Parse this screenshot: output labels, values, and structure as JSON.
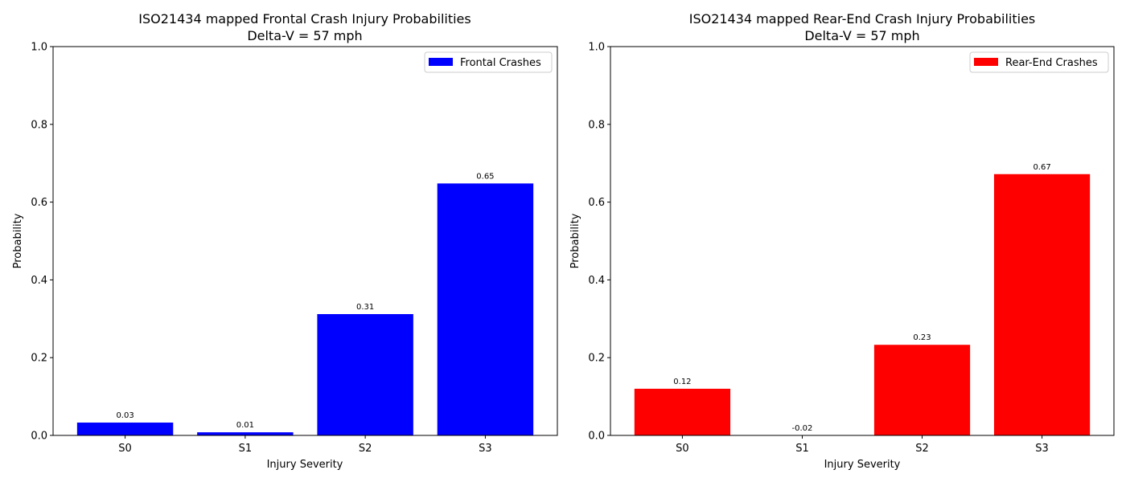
{
  "chart_data": [
    {
      "type": "bar",
      "title": "ISO21434 mapped Frontal Crash Injury Probabilities",
      "subtitle": "Delta-V = 57 mph",
      "xlabel": "Injury Severity",
      "ylabel": "Probability",
      "categories": [
        "S0",
        "S1",
        "S2",
        "S3"
      ],
      "series": [
        {
          "name": "Frontal Crashes",
          "color": "#0000ff",
          "values": [
            0.033,
            0.008,
            0.312,
            0.648
          ]
        }
      ],
      "value_labels": [
        "0.03",
        "0.01",
        "0.31",
        "0.65"
      ],
      "ylim": [
        0,
        1.0
      ],
      "yticks": [
        "0.0",
        "0.2",
        "0.4",
        "0.6",
        "0.8",
        "1.0"
      ],
      "grid": false,
      "legend": "top-right"
    },
    {
      "type": "bar",
      "title": "ISO21434 mapped Rear-End Crash Injury Probabilities",
      "subtitle": "Delta-V = 57 mph",
      "xlabel": "Injury Severity",
      "ylabel": "Probability",
      "categories": [
        "S0",
        "S1",
        "S2",
        "S3"
      ],
      "series": [
        {
          "name": "Rear-End Crashes",
          "color": "#ff0000",
          "values": [
            0.12,
            -0.02,
            0.233,
            0.672
          ]
        }
      ],
      "value_labels": [
        "0.12",
        "-0.02",
        "0.23",
        "0.67"
      ],
      "ylim": [
        0,
        1.0
      ],
      "yticks": [
        "0.0",
        "0.2",
        "0.4",
        "0.6",
        "0.8",
        "1.0"
      ],
      "grid": false,
      "legend": "top-right"
    }
  ]
}
